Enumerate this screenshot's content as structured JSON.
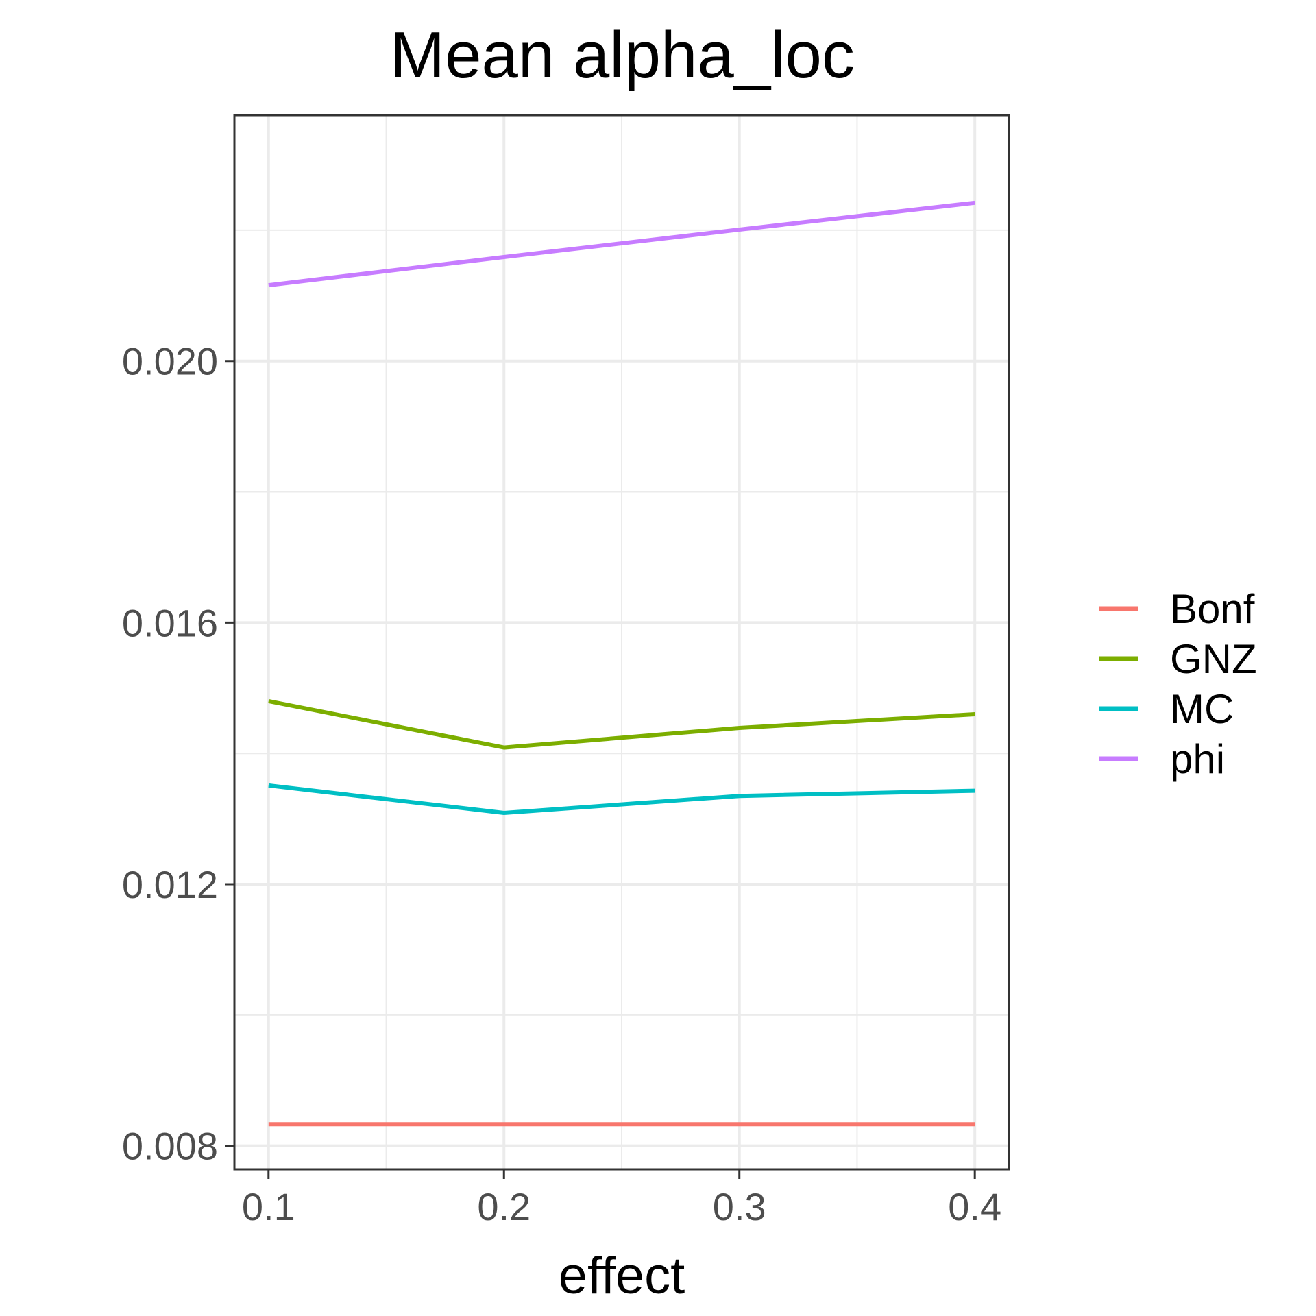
{
  "chart_data": {
    "type": "line",
    "title": "Mean alpha_loc",
    "xlabel": "effect",
    "ylabel": "",
    "x": [
      0.1,
      0.2,
      0.3,
      0.4
    ],
    "x_tick_labels": [
      "0.1",
      "0.2",
      "0.3",
      "0.4"
    ],
    "y_tick_values": [
      0.008,
      0.012,
      0.016,
      0.02
    ],
    "y_tick_labels": [
      "0.008",
      "0.012",
      "0.016",
      "0.020"
    ],
    "xlim": [
      0.0855,
      0.4145
    ],
    "ylim": [
      0.00764,
      0.02376
    ],
    "grid": true,
    "legend_position": "right",
    "series": [
      {
        "name": "Bonf",
        "color": "#F8766D",
        "values": [
          0.00833,
          0.00833,
          0.00833,
          0.00833
        ]
      },
      {
        "name": "GNZ",
        "color": "#7CAE00",
        "values": [
          0.0148,
          0.01409,
          0.01439,
          0.0146
        ]
      },
      {
        "name": "MC",
        "color": "#00BFC4",
        "values": [
          0.01351,
          0.01309,
          0.01335,
          0.01343
        ]
      },
      {
        "name": "phi",
        "color": "#C77CFF",
        "values": [
          0.02116,
          0.02159,
          0.02201,
          0.02242
        ]
      }
    ]
  }
}
